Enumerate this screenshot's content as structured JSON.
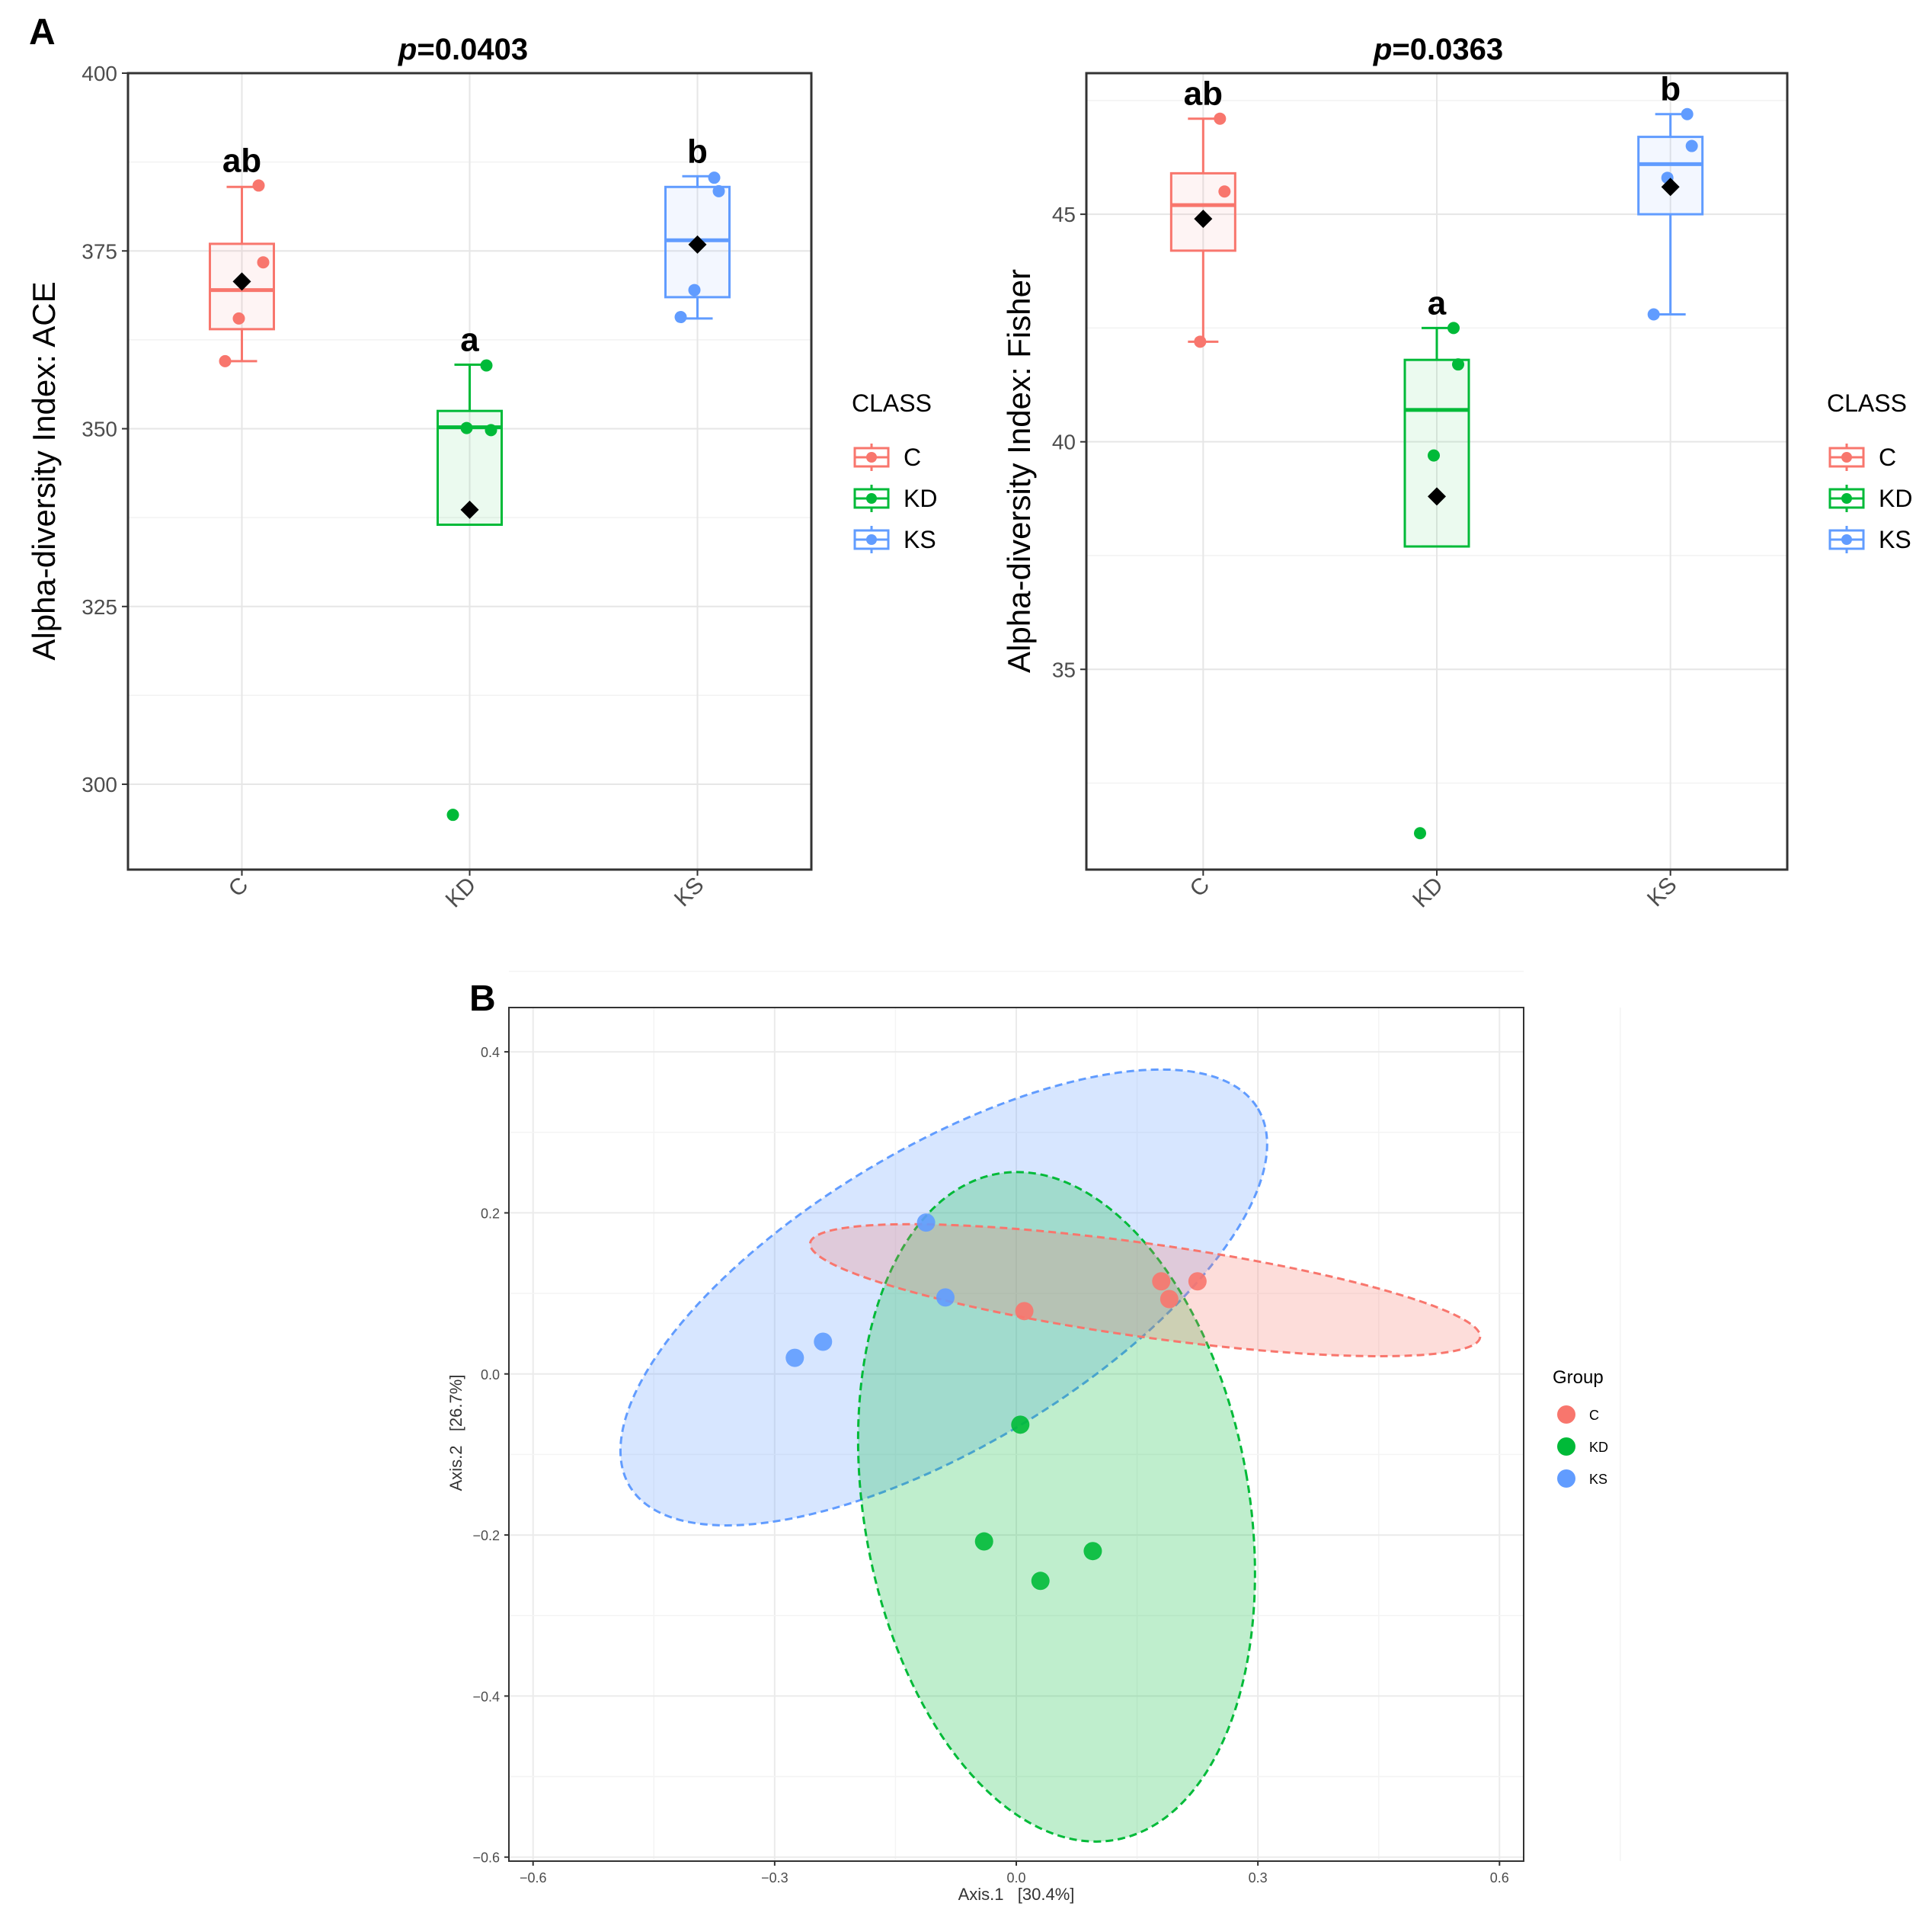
{
  "colors": {
    "C": "#F8766D",
    "KD": "#00BA38",
    "KS": "#619CFF",
    "mean": "#000000"
  },
  "chart_data": [
    {
      "type": "box",
      "panel": "A",
      "title": "p=0.0403",
      "title_prefix": "p",
      "title_value": "=0.0403",
      "xlabel": "",
      "ylabel": "Alpha-diversity Index: ACE",
      "ylim": [
        288,
        400
      ],
      "yticks": [
        300,
        325,
        350,
        375,
        400
      ],
      "categories": [
        "C",
        "KD",
        "KS"
      ],
      "legend_title": "CLASS",
      "legend": [
        "C",
        "KD",
        "KS"
      ],
      "groups": [
        {
          "name": "C",
          "min": 359.5,
          "q1": 364.0,
          "median": 369.5,
          "q3": 376.0,
          "max": 384.0,
          "mean": 370.7,
          "points": [
            384.2,
            373.4,
            365.5,
            359.5
          ],
          "letter": "ab"
        },
        {
          "name": "KD",
          "min": 336.5,
          "q1": 336.5,
          "median": 350.2,
          "q3": 352.5,
          "max": 359.0,
          "mean": 338.6,
          "points": [
            358.9,
            349.8,
            350.1,
            295.7
          ],
          "letter": "a"
        },
        {
          "name": "KS",
          "min": 365.5,
          "q1": 368.5,
          "median": 376.5,
          "q3": 384.0,
          "max": 385.5,
          "mean": 375.9,
          "points": [
            385.3,
            383.4,
            369.5,
            365.7
          ],
          "letter": "b"
        }
      ]
    },
    {
      "type": "box",
      "panel": "A",
      "title": "p=0.0363",
      "title_prefix": "p",
      "title_value": "=0.0363",
      "xlabel": "",
      "ylabel": "Alpha-diversity Index: Fisher",
      "ylim": [
        30.6,
        48.1
      ],
      "yticks": [
        35,
        40,
        45
      ],
      "categories": [
        "C",
        "KD",
        "KS"
      ],
      "legend_title": "CLASS",
      "legend": [
        "C",
        "KD",
        "KS"
      ],
      "groups": [
        {
          "name": "C",
          "min": 42.2,
          "q1": 44.2,
          "median": 45.2,
          "q3": 45.9,
          "max": 47.1,
          "mean": 44.9,
          "points": [
            47.1,
            45.5,
            42.2
          ],
          "letter": "ab"
        },
        {
          "name": "KD",
          "min": 37.7,
          "q1": 37.7,
          "median": 40.7,
          "q3": 41.8,
          "max": 42.5,
          "mean": 38.8,
          "points": [
            42.5,
            41.7,
            39.7,
            31.4
          ],
          "letter": "a"
        },
        {
          "name": "KS",
          "min": 42.8,
          "q1": 45.0,
          "median": 46.1,
          "q3": 46.7,
          "max": 47.2,
          "mean": 45.6,
          "points": [
            47.2,
            46.5,
            45.8,
            42.8
          ],
          "letter": "b"
        }
      ]
    },
    {
      "type": "scatter",
      "panel": "B",
      "title": "",
      "xlabel": "Axis.1   [30.4%]",
      "ylabel": "Axis.2   [26.7%]",
      "xlim": [
        -0.63,
        0.63
      ],
      "ylim": [
        -0.605,
        0.455
      ],
      "xticks": [
        -0.6,
        -0.3,
        0.0,
        0.3,
        0.6
      ],
      "xtick_labels": [
        "−0.6",
        "−0.3",
        "0.0",
        "0.3",
        "0.6"
      ],
      "yticks": [
        -0.6,
        -0.4,
        -0.2,
        0.0,
        0.2,
        0.4
      ],
      "ytick_labels": [
        "−0.6",
        "−0.4",
        "−0.2",
        "0.0",
        "0.2",
        "0.4"
      ],
      "legend_title": "Group",
      "legend": [
        "C",
        "KD",
        "KS"
      ],
      "series": [
        {
          "name": "C",
          "points": [
            [
              0.18,
              0.115
            ],
            [
              0.225,
              0.115
            ],
            [
              0.19,
              0.093
            ],
            [
              0.01,
              0.078
            ]
          ],
          "ellipse": {
            "cx": 0.16,
            "cy": 0.104,
            "rx": 0.42,
            "ry": 0.058,
            "angle_deg": 8
          }
        },
        {
          "name": "KD",
          "points": [
            [
              0.005,
              -0.063
            ],
            [
              -0.04,
              -0.208
            ],
            [
              0.095,
              -0.22
            ],
            [
              0.03,
              -0.257
            ]
          ],
          "ellipse": {
            "cx": 0.05,
            "cy": -0.165,
            "rx": 0.239,
            "ry": 0.42,
            "angle_deg": -10
          }
        },
        {
          "name": "KS",
          "points": [
            [
              -0.112,
              0.188
            ],
            [
              -0.088,
              0.095
            ],
            [
              -0.24,
              0.04
            ],
            [
              -0.275,
              0.02
            ]
          ],
          "ellipse": {
            "cx": -0.09,
            "cy": 0.095,
            "rx": 0.455,
            "ry": 0.185,
            "angle_deg": -31
          }
        }
      ]
    }
  ],
  "panel_labels": {
    "a": "A",
    "b": "B"
  }
}
